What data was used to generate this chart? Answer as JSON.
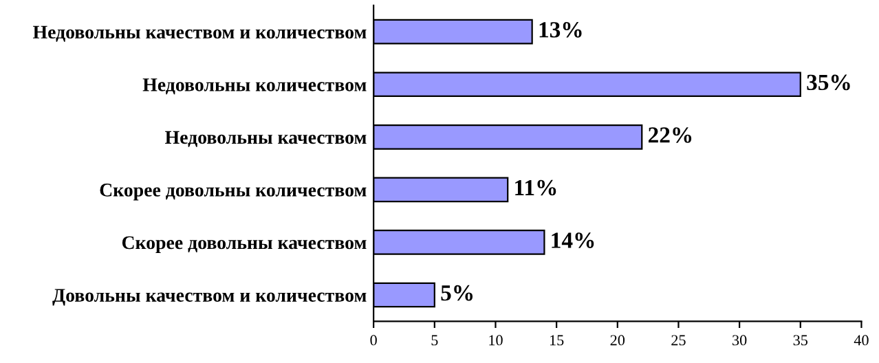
{
  "chart_data": {
    "type": "bar",
    "orientation": "horizontal",
    "categories": [
      "Недовольны качеством и количеством",
      "Недовольны количеством",
      "Недовольны качеством",
      "Скорее довольны количеством",
      "Скорее довольны качеством",
      "Довольны качеством и количеством"
    ],
    "values": [
      13,
      35,
      22,
      11,
      14,
      5
    ],
    "value_labels": [
      "13%",
      "35%",
      "22%",
      "11%",
      "14%",
      "5%"
    ],
    "color": "#9999ff",
    "xlim": [
      0,
      40
    ],
    "xticks": [
      0,
      5,
      10,
      15,
      20,
      25,
      30,
      35,
      40
    ],
    "grid": false,
    "legend": false
  }
}
